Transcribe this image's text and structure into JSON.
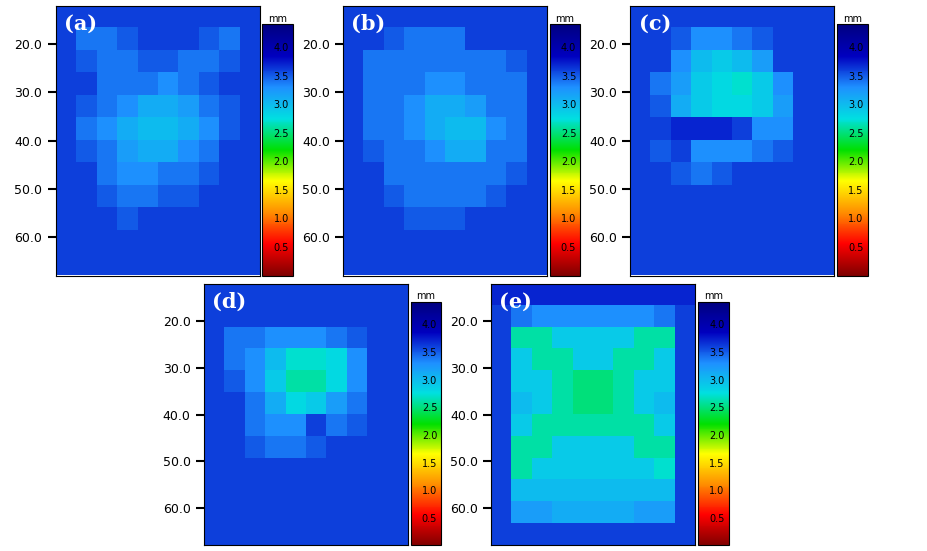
{
  "chart_data": [
    {
      "type": "heatmap",
      "title": "(a)",
      "tick_labels": "y",
      "colorbar_label": "mm",
      "ylim": [
        68,
        12
      ],
      "yticks": [
        {
          "value": 20,
          "label": "20.0"
        },
        {
          "value": 30,
          "label": "30.0"
        },
        {
          "value": 40,
          "label": "40.0"
        },
        {
          "value": 50,
          "label": "50.0"
        },
        {
          "value": 60,
          "label": "60.0"
        }
      ],
      "colorbar_range": [
        0,
        4.4
      ],
      "colorbar_ticks": [
        {
          "value": 0.5,
          "label": "0.5"
        },
        {
          "value": 1,
          "label": "1.0"
        },
        {
          "value": 1.5,
          "label": "1.5"
        },
        {
          "value": 2,
          "label": "2.0"
        },
        {
          "value": 2.5,
          "label": "2.5"
        },
        {
          "value": 3,
          "label": "3.0"
        },
        {
          "value": 3.5,
          "label": "3.5"
        },
        {
          "value": 4,
          "label": "4.0"
        }
      ],
      "cells": [
        [
          3.6,
          3.6,
          3.6,
          3.6,
          3.6,
          3.6,
          3.6,
          3.6,
          3.6,
          3.6
        ],
        [
          3.6,
          3.4,
          3.4,
          3.5,
          3.6,
          3.6,
          3.6,
          3.5,
          3.4,
          3.6
        ],
        [
          3.6,
          3.5,
          3.4,
          3.4,
          3.5,
          3.5,
          3.4,
          3.4,
          3.5,
          3.6
        ],
        [
          3.6,
          3.6,
          3.4,
          3.4,
          3.4,
          3.3,
          3.4,
          3.5,
          3.6,
          3.6
        ],
        [
          3.6,
          3.5,
          3.4,
          3.3,
          3.1,
          3.1,
          3.2,
          3.4,
          3.5,
          3.6
        ],
        [
          3.6,
          3.4,
          3.3,
          3.1,
          3.0,
          3.0,
          3.1,
          3.3,
          3.5,
          3.6
        ],
        [
          3.6,
          3.5,
          3.4,
          3.2,
          3.1,
          3.1,
          3.3,
          3.4,
          3.6,
          3.6
        ],
        [
          3.6,
          3.6,
          3.4,
          3.3,
          3.3,
          3.4,
          3.4,
          3.5,
          3.6,
          3.6
        ],
        [
          3.6,
          3.6,
          3.5,
          3.4,
          3.4,
          3.5,
          3.5,
          3.6,
          3.6,
          3.6
        ],
        [
          3.6,
          3.6,
          3.6,
          3.5,
          3.6,
          3.6,
          3.6,
          3.6,
          3.6,
          3.6
        ],
        [
          3.6,
          3.6,
          3.6,
          3.6,
          3.6,
          3.6,
          3.6,
          3.6,
          3.6,
          3.6
        ],
        [
          3.6,
          3.6,
          3.6,
          3.6,
          3.6,
          3.6,
          3.6,
          3.6,
          3.6,
          3.6
        ]
      ]
    },
    {
      "type": "heatmap",
      "title": "(b)",
      "tick_labels": "y",
      "colorbar_label": "mm",
      "ylim": [
        68,
        12
      ],
      "yticks": [
        {
          "value": 20,
          "label": "20.0"
        },
        {
          "value": 30,
          "label": "30.0"
        },
        {
          "value": 40,
          "label": "40.0"
        },
        {
          "value": 50,
          "label": "50.0"
        },
        {
          "value": 60,
          "label": "60.0"
        }
      ],
      "colorbar_range": [
        0,
        4.4
      ],
      "colorbar_ticks": [
        {
          "value": 0.5,
          "label": "0.5"
        },
        {
          "value": 1,
          "label": "1.0"
        },
        {
          "value": 1.5,
          "label": "1.5"
        },
        {
          "value": 2,
          "label": "2.0"
        },
        {
          "value": 2.5,
          "label": "2.5"
        },
        {
          "value": 3,
          "label": "3.0"
        },
        {
          "value": 3.5,
          "label": "3.5"
        },
        {
          "value": 4,
          "label": "4.0"
        }
      ],
      "cells": [
        [
          3.6,
          3.6,
          3.6,
          3.6,
          3.6,
          3.6,
          3.6,
          3.6,
          3.6,
          3.6
        ],
        [
          3.6,
          3.6,
          3.5,
          3.4,
          3.4,
          3.4,
          3.6,
          3.6,
          3.6,
          3.6
        ],
        [
          3.6,
          3.4,
          3.4,
          3.4,
          3.4,
          3.4,
          3.4,
          3.4,
          3.5,
          3.6
        ],
        [
          3.6,
          3.4,
          3.4,
          3.4,
          3.3,
          3.3,
          3.4,
          3.4,
          3.4,
          3.6
        ],
        [
          3.6,
          3.4,
          3.4,
          3.3,
          3.1,
          3.1,
          3.2,
          3.4,
          3.4,
          3.6
        ],
        [
          3.6,
          3.4,
          3.4,
          3.3,
          3.1,
          3.0,
          3.0,
          3.3,
          3.4,
          3.6
        ],
        [
          3.6,
          3.5,
          3.4,
          3.4,
          3.3,
          3.1,
          3.1,
          3.4,
          3.4,
          3.6
        ],
        [
          3.6,
          3.6,
          3.4,
          3.4,
          3.4,
          3.4,
          3.4,
          3.4,
          3.5,
          3.6
        ],
        [
          3.6,
          3.6,
          3.5,
          3.4,
          3.4,
          3.4,
          3.4,
          3.5,
          3.6,
          3.6
        ],
        [
          3.6,
          3.6,
          3.6,
          3.5,
          3.5,
          3.5,
          3.6,
          3.6,
          3.6,
          3.6
        ],
        [
          3.6,
          3.6,
          3.6,
          3.6,
          3.6,
          3.6,
          3.6,
          3.6,
          3.6,
          3.6
        ],
        [
          3.6,
          3.6,
          3.6,
          3.6,
          3.6,
          3.6,
          3.6,
          3.6,
          3.6,
          3.6
        ]
      ]
    },
    {
      "type": "heatmap",
      "title": "(c)",
      "tick_labels": "y",
      "colorbar_label": "mm",
      "ylim": [
        68,
        12
      ],
      "yticks": [
        {
          "value": 20,
          "label": "20.0"
        },
        {
          "value": 30,
          "label": "30.0"
        },
        {
          "value": 40,
          "label": "40.0"
        },
        {
          "value": 50,
          "label": "50.0"
        },
        {
          "value": 60,
          "label": "60.0"
        }
      ],
      "colorbar_range": [
        0,
        4.4
      ],
      "colorbar_ticks": [
        {
          "value": 0.5,
          "label": "0.5"
        },
        {
          "value": 1,
          "label": "1.0"
        },
        {
          "value": 1.5,
          "label": "1.5"
        },
        {
          "value": 2,
          "label": "2.0"
        },
        {
          "value": 2.5,
          "label": "2.5"
        },
        {
          "value": 3,
          "label": "3.0"
        },
        {
          "value": 3.5,
          "label": "3.5"
        },
        {
          "value": 4,
          "label": "4.0"
        }
      ],
      "cells": [
        [
          3.6,
          3.6,
          3.6,
          3.6,
          3.6,
          3.6,
          3.6,
          3.6,
          3.6,
          3.6
        ],
        [
          3.6,
          3.6,
          3.5,
          3.3,
          3.3,
          3.4,
          3.5,
          3.6,
          3.6,
          3.6
        ],
        [
          3.6,
          3.6,
          3.3,
          3.0,
          2.9,
          3.0,
          3.2,
          3.6,
          3.6,
          3.6
        ],
        [
          3.6,
          3.4,
          3.2,
          2.9,
          2.8,
          2.7,
          2.9,
          3.3,
          3.6,
          3.6
        ],
        [
          3.6,
          3.5,
          3.1,
          2.9,
          2.8,
          2.8,
          2.9,
          3.2,
          3.6,
          3.6
        ],
        [
          3.6,
          3.6,
          3.7,
          3.7,
          3.7,
          3.6,
          3.3,
          3.3,
          3.6,
          3.6
        ],
        [
          3.6,
          3.5,
          3.6,
          3.3,
          3.3,
          3.3,
          3.4,
          3.5,
          3.6,
          3.6
        ],
        [
          3.6,
          3.6,
          3.5,
          3.4,
          3.5,
          3.6,
          3.6,
          3.6,
          3.6,
          3.6
        ],
        [
          3.6,
          3.6,
          3.6,
          3.6,
          3.6,
          3.6,
          3.6,
          3.6,
          3.6,
          3.6
        ],
        [
          3.6,
          3.6,
          3.6,
          3.6,
          3.6,
          3.6,
          3.6,
          3.6,
          3.6,
          3.6
        ],
        [
          3.6,
          3.6,
          3.6,
          3.6,
          3.6,
          3.6,
          3.6,
          3.6,
          3.6,
          3.6
        ],
        [
          3.6,
          3.6,
          3.6,
          3.6,
          3.6,
          3.6,
          3.6,
          3.6,
          3.6,
          3.6
        ]
      ]
    },
    {
      "type": "heatmap",
      "title": "(d)",
      "tick_labels": "y",
      "colorbar_label": "mm",
      "ylim": [
        68,
        12
      ],
      "yticks": [
        {
          "value": 20,
          "label": "20.0"
        },
        {
          "value": 30,
          "label": "30.0"
        },
        {
          "value": 40,
          "label": "40.0"
        },
        {
          "value": 50,
          "label": "50.0"
        },
        {
          "value": 60,
          "label": "60.0"
        }
      ],
      "colorbar_range": [
        0,
        4.4
      ],
      "colorbar_ticks": [
        {
          "value": 0.5,
          "label": "0.5"
        },
        {
          "value": 1,
          "label": "1.0"
        },
        {
          "value": 1.5,
          "label": "1.5"
        },
        {
          "value": 2,
          "label": "2.0"
        },
        {
          "value": 2.5,
          "label": "2.5"
        },
        {
          "value": 3,
          "label": "3.0"
        },
        {
          "value": 3.5,
          "label": "3.5"
        },
        {
          "value": 4,
          "label": "4.0"
        }
      ],
      "cells": [
        [
          3.6,
          3.6,
          3.6,
          3.6,
          3.6,
          3.6,
          3.6,
          3.6,
          3.6,
          3.6
        ],
        [
          3.6,
          3.6,
          3.6,
          3.6,
          3.6,
          3.6,
          3.6,
          3.6,
          3.6,
          3.6
        ],
        [
          3.6,
          3.4,
          3.4,
          3.3,
          3.3,
          3.3,
          3.4,
          3.5,
          3.6,
          3.6
        ],
        [
          3.6,
          3.4,
          3.3,
          3.0,
          2.7,
          2.7,
          2.8,
          3.3,
          3.6,
          3.6
        ],
        [
          3.6,
          3.5,
          3.3,
          2.9,
          2.6,
          2.6,
          2.8,
          3.3,
          3.6,
          3.6
        ],
        [
          3.6,
          3.6,
          3.4,
          3.1,
          2.8,
          2.9,
          3.2,
          3.4,
          3.6,
          3.6
        ],
        [
          3.6,
          3.6,
          3.4,
          3.3,
          3.3,
          3.6,
          3.4,
          3.5,
          3.6,
          3.6
        ],
        [
          3.6,
          3.6,
          3.5,
          3.4,
          3.4,
          3.5,
          3.6,
          3.6,
          3.6,
          3.6
        ],
        [
          3.6,
          3.6,
          3.6,
          3.6,
          3.6,
          3.6,
          3.6,
          3.6,
          3.6,
          3.6
        ],
        [
          3.6,
          3.6,
          3.6,
          3.6,
          3.6,
          3.6,
          3.6,
          3.6,
          3.6,
          3.6
        ],
        [
          3.6,
          3.6,
          3.6,
          3.6,
          3.6,
          3.6,
          3.6,
          3.6,
          3.6,
          3.6
        ],
        [
          3.6,
          3.6,
          3.6,
          3.6,
          3.6,
          3.6,
          3.6,
          3.6,
          3.6,
          3.6
        ]
      ]
    },
    {
      "type": "heatmap",
      "title": "(e)",
      "tick_labels": "y",
      "colorbar_label": "mm",
      "ylim": [
        68,
        12
      ],
      "yticks": [
        {
          "value": 20,
          "label": "20.0"
        },
        {
          "value": 30,
          "label": "30.0"
        },
        {
          "value": 40,
          "label": "40.0"
        },
        {
          "value": 50,
          "label": "50.0"
        },
        {
          "value": 60,
          "label": "60.0"
        }
      ],
      "colorbar_range": [
        0,
        4.4
      ],
      "colorbar_ticks": [
        {
          "value": 0.5,
          "label": "0.5"
        },
        {
          "value": 1,
          "label": "1.0"
        },
        {
          "value": 1.5,
          "label": "1.5"
        },
        {
          "value": 2,
          "label": "2.0"
        },
        {
          "value": 2.5,
          "label": "2.5"
        },
        {
          "value": 3,
          "label": "3.0"
        },
        {
          "value": 3.5,
          "label": "3.5"
        },
        {
          "value": 4,
          "label": "4.0"
        }
      ],
      "cells": [
        [
          3.7,
          3.7,
          3.7,
          3.7,
          3.7,
          3.7,
          3.7,
          3.7,
          3.7,
          3.7
        ],
        [
          3.6,
          3.4,
          3.3,
          3.3,
          3.3,
          3.3,
          3.3,
          3.3,
          3.4,
          3.6
        ],
        [
          3.6,
          2.6,
          2.6,
          2.9,
          2.9,
          2.9,
          2.9,
          2.6,
          2.6,
          3.6
        ],
        [
          3.6,
          2.9,
          2.6,
          2.6,
          2.9,
          2.9,
          2.6,
          2.6,
          2.9,
          3.6
        ],
        [
          3.6,
          2.9,
          2.9,
          2.6,
          2.5,
          2.5,
          2.6,
          2.9,
          2.9,
          3.6
        ],
        [
          3.6,
          3.0,
          2.9,
          2.6,
          2.5,
          2.5,
          2.6,
          2.9,
          3.0,
          3.6
        ],
        [
          3.6,
          2.9,
          2.6,
          2.6,
          2.6,
          2.6,
          2.6,
          2.6,
          2.9,
          3.6
        ],
        [
          3.6,
          2.6,
          2.6,
          2.9,
          2.9,
          2.9,
          2.9,
          2.6,
          2.6,
          3.6
        ],
        [
          3.6,
          2.6,
          2.9,
          2.9,
          2.9,
          2.9,
          2.9,
          2.9,
          2.7,
          3.6
        ],
        [
          3.6,
          3.0,
          3.0,
          3.0,
          3.0,
          3.0,
          3.0,
          3.0,
          3.0,
          3.6
        ],
        [
          3.6,
          3.2,
          3.2,
          3.1,
          3.1,
          3.1,
          3.1,
          3.2,
          3.2,
          3.6
        ],
        [
          3.6,
          3.6,
          3.6,
          3.6,
          3.6,
          3.6,
          3.6,
          3.6,
          3.6,
          3.6
        ]
      ]
    }
  ]
}
